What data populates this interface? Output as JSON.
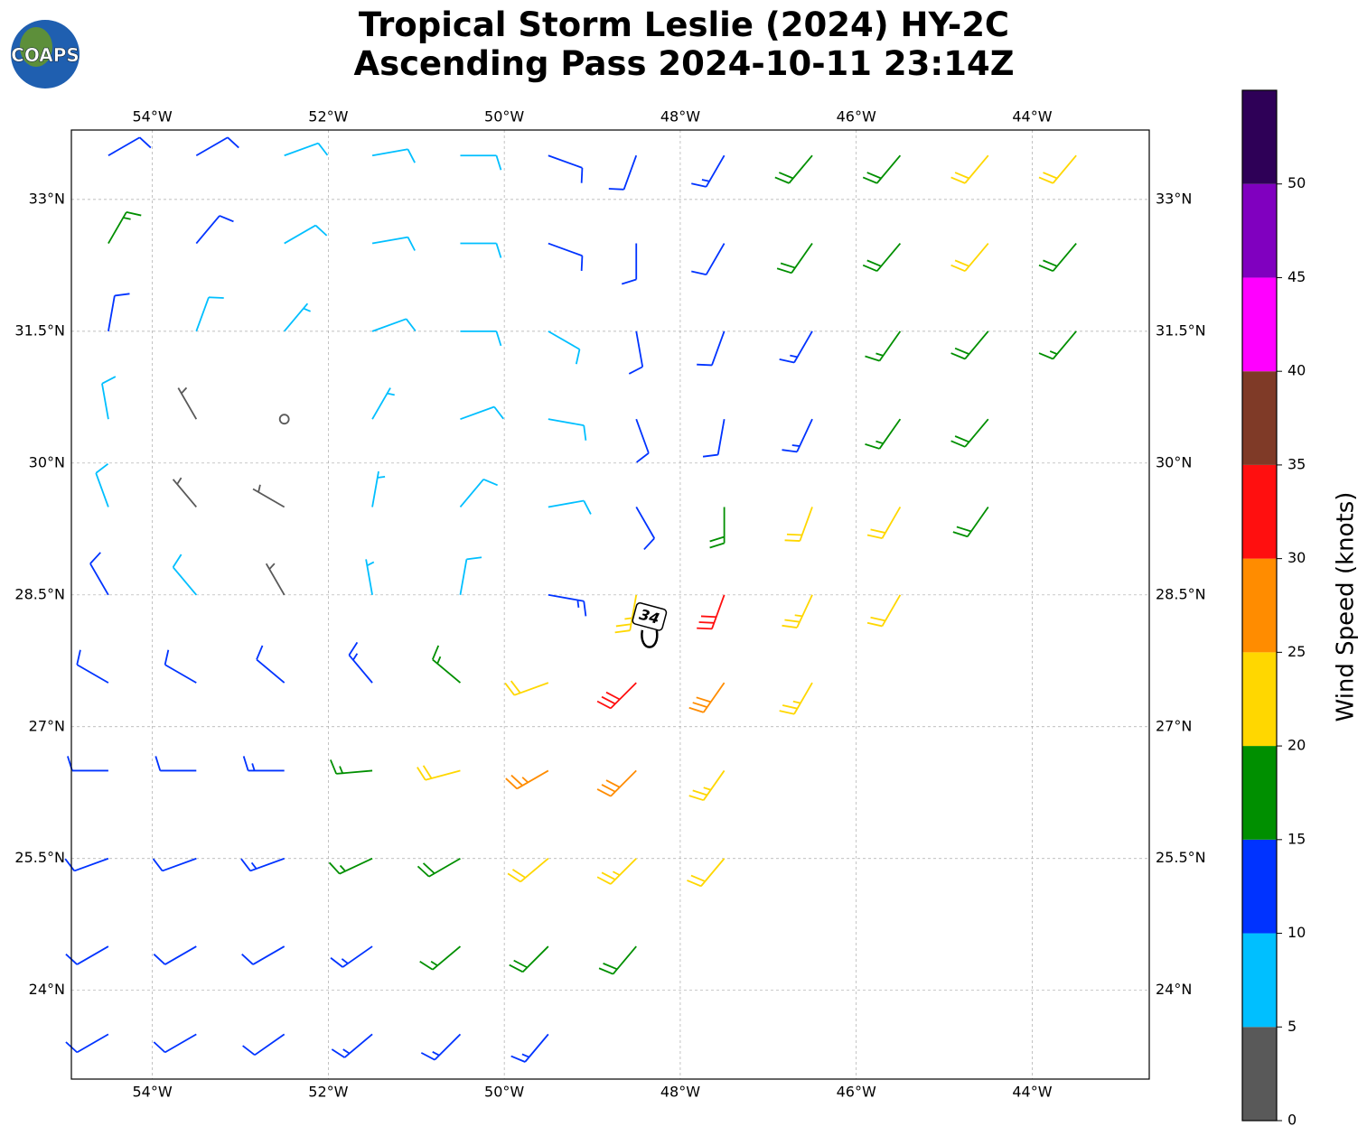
{
  "chart_data": {
    "type": "barbs",
    "title": [
      "Tropical Storm Leslie (2024) HY-2C",
      "Ascending Pass 2024-10-11 23:14Z"
    ],
    "logo": "COAPS",
    "xlim": [
      -54.92,
      -42.67
    ],
    "ylim": [
      22.99,
      33.79
    ],
    "xticks": [
      {
        "value": -54,
        "label": "54°W"
      },
      {
        "value": -52,
        "label": "52°W"
      },
      {
        "value": -50,
        "label": "50°W"
      },
      {
        "value": -48,
        "label": "48°W"
      },
      {
        "value": -46,
        "label": "46°W"
      },
      {
        "value": -44,
        "label": "44°W"
      }
    ],
    "yticks": [
      {
        "value": 24,
        "label": "24°N"
      },
      {
        "value": 25.5,
        "label": "25.5°N"
      },
      {
        "value": 27,
        "label": "27°N"
      },
      {
        "value": 28.5,
        "label": "28.5°N"
      },
      {
        "value": 30,
        "label": "30°N"
      },
      {
        "value": 31.5,
        "label": "31.5°N"
      },
      {
        "value": 33,
        "label": "33°N"
      }
    ],
    "grid": true,
    "lons": [
      -54.5,
      -53.5,
      -52.5,
      -51.5,
      -50.5,
      -49.5,
      -48.5,
      -47.5,
      -46.5,
      -45.5,
      -44.5,
      -43.5
    ],
    "lats": [
      33.5,
      32.5,
      31.5,
      30.5,
      29.5,
      28.5,
      27.5,
      26.5,
      25.5,
      24.5,
      23.5
    ],
    "speed": [
      [
        12,
        12,
        8,
        8,
        8,
        12,
        12,
        14,
        18,
        18,
        22,
        20
      ],
      [
        16,
        10,
        8,
        8,
        8,
        10,
        12,
        12,
        18,
        18,
        20,
        18
      ],
      [
        12,
        8,
        6,
        8,
        8,
        8,
        12,
        12,
        14,
        16,
        18,
        16
      ],
      [
        8,
        3,
        2,
        6,
        8,
        8,
        10,
        12,
        14,
        16,
        18,
        null
      ],
      [
        8,
        4,
        4,
        6,
        8,
        8,
        12,
        18,
        22,
        22,
        18,
        null
      ],
      [
        10,
        8,
        4,
        7,
        8,
        14,
        24,
        30,
        24,
        22,
        null,
        null
      ],
      [
        12,
        12,
        12,
        13,
        16,
        22,
        32,
        28,
        24,
        null,
        null,
        null
      ],
      [
        12,
        12,
        14,
        16,
        20,
        26,
        28,
        24,
        null,
        null,
        null,
        null
      ],
      [
        12,
        12,
        14,
        16,
        18,
        20,
        24,
        22,
        null,
        null,
        null,
        null
      ],
      [
        12,
        12,
        12,
        14,
        16,
        18,
        18,
        null,
        null,
        null,
        null,
        null
      ],
      [
        12,
        12,
        12,
        14,
        14,
        14,
        null,
        null,
        null,
        null,
        null,
        null
      ]
    ],
    "direction": [
      [
        60,
        60,
        70,
        80,
        90,
        110,
        200,
        210,
        220,
        220,
        220,
        220
      ],
      [
        30,
        40,
        60,
        80,
        90,
        110,
        180,
        210,
        215,
        220,
        220,
        220
      ],
      [
        10,
        20,
        40,
        70,
        90,
        120,
        170,
        200,
        210,
        215,
        220,
        220
      ],
      [
        350,
        330,
        300,
        30,
        70,
        100,
        160,
        190,
        205,
        215,
        220,
        null
      ],
      [
        340,
        320,
        300,
        10,
        40,
        80,
        150,
        180,
        200,
        210,
        215,
        null
      ],
      [
        330,
        320,
        330,
        350,
        10,
        100,
        190,
        200,
        205,
        210,
        null,
        null
      ],
      [
        300,
        300,
        310,
        320,
        310,
        250,
        225,
        215,
        210,
        null,
        null,
        null
      ],
      [
        270,
        270,
        270,
        265,
        255,
        240,
        225,
        215,
        null,
        null,
        null,
        null
      ],
      [
        250,
        250,
        250,
        245,
        240,
        230,
        225,
        220,
        null,
        null,
        null,
        null
      ],
      [
        240,
        240,
        240,
        235,
        230,
        225,
        220,
        null,
        null,
        null,
        null,
        null
      ],
      [
        240,
        240,
        235,
        230,
        225,
        220,
        null,
        null,
        null,
        null,
        null,
        null
      ]
    ],
    "contour": {
      "label": "34",
      "lon": -48.35,
      "lat": 28.15
    },
    "colorbar": {
      "label": "Wind Speed (knots)",
      "bounds": [
        0,
        5,
        10,
        15,
        20,
        25,
        30,
        35,
        40,
        45,
        50,
        55
      ],
      "colors": [
        "#595959",
        "#00bfff",
        "#0033ff",
        "#008f00",
        "#ffd700",
        "#ff8c00",
        "#ff0f0f",
        "#7f3a27",
        "#ff00ff",
        "#8000bf",
        "#2e0057"
      ],
      "ticks": [
        0,
        5,
        10,
        15,
        20,
        25,
        30,
        35,
        40,
        45,
        50
      ]
    }
  }
}
